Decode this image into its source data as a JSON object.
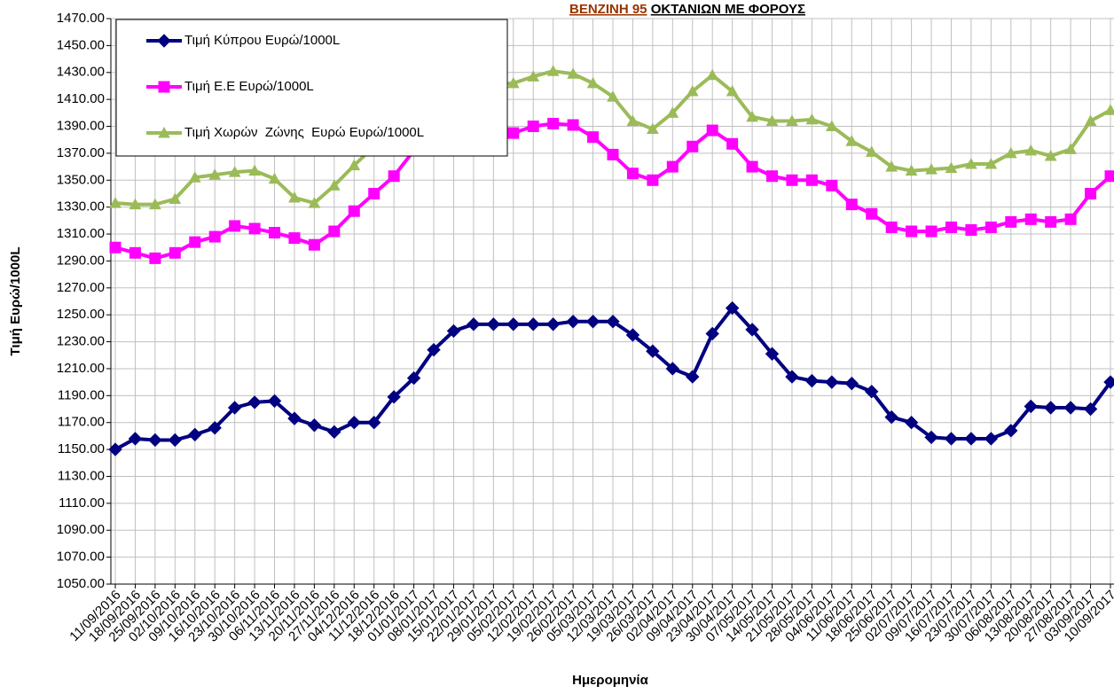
{
  "chart_data": {
    "type": "line",
    "title": [
      "ΒΕΝΖΙΝΗ 95",
      "ΟΚΤΑΝΙΩΝ ΜΕ ΦΟΡΟΥΣ"
    ],
    "title_colors": [
      "#993300",
      "#000000"
    ],
    "x_label": "Ημερομηνία",
    "y_label": "Τιμή Ευρώ/1000L",
    "categories": [
      "11/09/2016",
      "18/09/2016",
      "25/09/2016",
      "02/10/2016",
      "09/10/2016",
      "16/10/2016",
      "23/10/2016",
      "30/10/2016",
      "06/11/2016",
      "13/11/2016",
      "20/11/2016",
      "27/11/2016",
      "04/12/2016",
      "11/12/2016",
      "18/12/2016",
      "01/01/2017",
      "08/01/2017",
      "15/01/2017",
      "22/01/2017",
      "29/01/2017",
      "05/02/2017",
      "12/02/2017",
      "19/02/2017",
      "26/02/2017",
      "05/03/2017",
      "12/03/2017",
      "19/03/2017",
      "26/03/2017",
      "02/04/2017",
      "09/04/2017",
      "23/04/2017",
      "30/04/2017",
      "07/05/2017",
      "14/05/2017",
      "21/05/2017",
      "28/05/2017",
      "04/06/2017",
      "11/06/2017",
      "18/06/2017",
      "25/06/2017",
      "02/07/2017",
      "09/07/2017",
      "16/07/2017",
      "23/07/2017",
      "30/07/2017",
      "06/08/2017",
      "13/08/2017",
      "20/08/2017",
      "27/08/2017",
      "03/09/2017",
      "10/09/2017"
    ],
    "series": [
      {
        "name": "Τιμή Κύπρου Ευρώ/1000L",
        "color": "#000080",
        "marker": "diamond",
        "values": [
          1150,
          1158,
          1157,
          1157,
          1161,
          1166,
          1181,
          1185,
          1186,
          1173,
          1168,
          1163,
          1170,
          1170,
          1189,
          1203,
          1224,
          1238,
          1243,
          1243,
          1243,
          1243,
          1243,
          1245,
          1245,
          1245,
          1235,
          1223,
          1210,
          1204,
          1236,
          1255,
          1239,
          1221,
          1204,
          1201,
          1200,
          1199,
          1193,
          1174,
          1170,
          1159,
          1158,
          1158,
          1158,
          1164,
          1182,
          1181,
          1181,
          1180,
          1200
        ]
      },
      {
        "name": "Τιμή Ε.Ε Ευρώ/1000L",
        "color": "#ff00ff",
        "marker": "square",
        "values": [
          1300,
          1296,
          1292,
          1296,
          1304,
          1308,
          1316,
          1314,
          1311,
          1307,
          1302,
          1312,
          1327,
          1340,
          1353,
          1372,
          1378,
          1381,
          1383,
          1384,
          1385,
          1390,
          1392,
          1391,
          1382,
          1369,
          1355,
          1350,
          1360,
          1375,
          1387,
          1377,
          1360,
          1353,
          1350,
          1350,
          1346,
          1332,
          1325,
          1315,
          1312,
          1312,
          1315,
          1313,
          1315,
          1319,
          1321,
          1319,
          1321,
          1340,
          1353
        ]
      },
      {
        "name": "Τιμή Χωρών  Ζώνης  Ευρώ Ευρώ/1000L",
        "color": "#9bbb59",
        "marker": "triangle",
        "values": [
          1333,
          1332,
          1332,
          1336,
          1352,
          1354,
          1356,
          1357,
          1351,
          1337,
          1333,
          1346,
          1361,
          1375,
          1388,
          1405,
          1412,
          1418,
          1420,
          1421,
          1422,
          1427,
          1431,
          1429,
          1422,
          1412,
          1394,
          1388,
          1400,
          1416,
          1428,
          1416,
          1397,
          1394,
          1394,
          1395,
          1390,
          1379,
          1371,
          1360,
          1357,
          1358,
          1359,
          1362,
          1362,
          1370,
          1372,
          1368,
          1373,
          1394,
          1402
        ]
      }
    ],
    "ylim": [
      1050,
      1470
    ],
    "yticks": [
      {
        "value": 1050,
        "label": "1050.00"
      },
      {
        "value": 1070,
        "label": "1070.00"
      },
      {
        "value": 1090,
        "label": "1090.00"
      },
      {
        "value": 1110,
        "label": "1110.00"
      },
      {
        "value": 1130,
        "label": "1130.00"
      },
      {
        "value": 1150,
        "label": "1150.00"
      },
      {
        "value": 1170,
        "label": "1170.00"
      },
      {
        "value": 1190,
        "label": "1190.00"
      },
      {
        "value": 1210,
        "label": "1210.00"
      },
      {
        "value": 1230,
        "label": "1230.00"
      },
      {
        "value": 1250,
        "label": "1250.00"
      },
      {
        "value": 1270,
        "label": "1270.00"
      },
      {
        "value": 1290,
        "label": "1290.00"
      },
      {
        "value": 1310,
        "label": "1310.00"
      },
      {
        "value": 1330,
        "label": "1330.00"
      },
      {
        "value": 1350,
        "label": "1350.00"
      },
      {
        "value": 1370,
        "label": "1370.00"
      },
      {
        "value": 1390,
        "label": "1390.00"
      },
      {
        "value": 1410,
        "label": "1410.00"
      },
      {
        "value": 1430,
        "label": "1430.00"
      },
      {
        "value": 1450,
        "label": "1450.00"
      },
      {
        "value": 1470,
        "label": "1470.00"
      }
    ],
    "grid": true,
    "legend": "top-left"
  }
}
